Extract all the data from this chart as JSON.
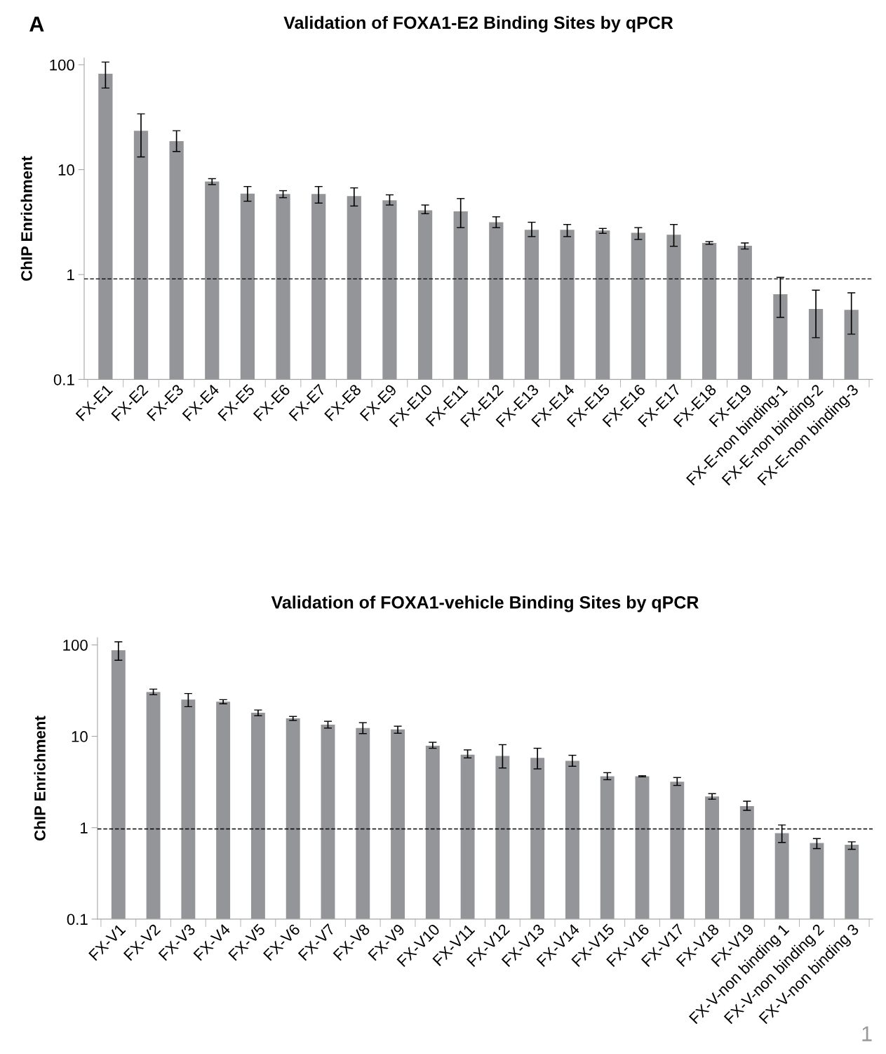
{
  "chart_data": [
    {
      "type": "bar",
      "title": "Validation of FOXA1-E2 Binding Sites by qPCR",
      "ylabel": "ChIP Enrichment",
      "annotations": [
        "A"
      ],
      "categories": [
        "FX-E1",
        "FX-E2",
        "FX-E3",
        "FX-E4",
        "FX-E5",
        "FX-E6",
        "FX-E7",
        "FX-E8",
        "FX-E9",
        "FX-E10",
        "FX-E11",
        "FX-E12",
        "FX-E13",
        "FX-E14",
        "FX-E15",
        "FX-E16",
        "FX-E17",
        "FX-E18",
        "FX-E19",
        "FX-E-non binding-1",
        "FX-E-non binding-2",
        "FX-E-non binding-3"
      ],
      "values": [
        82,
        23.5,
        18.7,
        7.7,
        5.9,
        5.85,
        5.85,
        5.6,
        5.1,
        4.1,
        4.0,
        3.15,
        2.67,
        2.67,
        2.63,
        2.5,
        2.4,
        2.0,
        1.88,
        0.65,
        0.47,
        0.46
      ],
      "errors": [
        [
          60,
          106
        ],
        [
          13.2,
          34
        ],
        [
          14.9,
          23.5
        ],
        [
          7.2,
          8.2
        ],
        [
          5.0,
          6.9
        ],
        [
          5.4,
          6.3
        ],
        [
          4.8,
          6.9
        ],
        [
          4.5,
          6.7
        ],
        [
          4.6,
          5.75
        ],
        [
          3.8,
          4.6
        ],
        [
          2.8,
          5.3
        ],
        [
          2.8,
          3.55
        ],
        [
          2.3,
          3.15
        ],
        [
          2.3,
          3.0
        ],
        [
          2.47,
          2.75
        ],
        [
          2.16,
          2.8
        ],
        [
          1.86,
          3.0
        ],
        [
          1.94,
          2.06
        ],
        [
          1.75,
          2.0
        ],
        [
          0.39,
          0.94
        ],
        [
          0.25,
          0.71
        ],
        [
          0.27,
          0.67
        ]
      ],
      "color": "#939598",
      "log": true,
      "ylim": [
        0.1,
        116
      ],
      "yticks": [
        {
          "value": 0.1,
          "label": "0.1"
        },
        1,
        10,
        100
      ],
      "grid": false,
      "ref_lines": [
        {
          "axis": "y",
          "value": 0.91,
          "color": "#000000",
          "line_style": "dashed"
        }
      ]
    },
    {
      "type": "bar",
      "title": "Validation of FOXA1-vehicle Binding Sites by qPCR",
      "ylabel": "ChIP Enrichment",
      "annotations": [
        "1"
      ],
      "categories": [
        "FX-V1",
        "FX-V2",
        "FX-V3",
        "FX-V4",
        "FX-V5",
        "FX-V6",
        "FX-V7",
        "FX-V8",
        "FX-V9",
        "FX-V10",
        "FX-V11",
        "FX-V12",
        "FX-V13",
        "FX-V14",
        "FX-V15",
        "FX-V16",
        "FX-V17",
        "FX-V18",
        "FX-V19",
        "FX-V-non binding 1",
        "FX-V-non binding 2",
        "FX-V-non binding 3"
      ],
      "values": [
        87.5,
        30.5,
        25.2,
        23.9,
        18.1,
        15.7,
        13.4,
        12.3,
        11.9,
        7.9,
        6.3,
        6.1,
        5.8,
        5.4,
        3.66,
        3.66,
        3.18,
        2.2,
        1.72,
        0.87,
        0.68,
        0.65
      ],
      "errors": [
        [
          68,
          108
        ],
        [
          28.5,
          32.8
        ],
        [
          21.1,
          29.4
        ],
        [
          22.7,
          25.2
        ],
        [
          16.8,
          19.4
        ],
        [
          14.9,
          16.5
        ],
        [
          12.3,
          14.6
        ],
        [
          10.7,
          14.1
        ],
        [
          10.8,
          12.9
        ],
        [
          7.4,
          8.6
        ],
        [
          5.8,
          7.1
        ],
        [
          4.5,
          8.1
        ],
        [
          4.4,
          7.4
        ],
        [
          4.7,
          6.2
        ],
        [
          3.35,
          4.0
        ],
        [
          3.6,
          3.7
        ],
        [
          2.9,
          3.54
        ],
        [
          2.05,
          2.36
        ],
        [
          1.55,
          1.95
        ],
        [
          0.69,
          1.07
        ],
        [
          0.59,
          0.76
        ],
        [
          0.58,
          0.7
        ]
      ],
      "color": "#939598",
      "log": true,
      "ylim": [
        0.1,
        120
      ],
      "yticks": [
        {
          "value": 0.1,
          "label": "0.1"
        },
        1,
        10,
        100
      ],
      "grid": false,
      "ref_lines": [
        {
          "axis": "y",
          "value": 0.97,
          "color": "#000000",
          "line_style": "dashed"
        }
      ]
    }
  ]
}
